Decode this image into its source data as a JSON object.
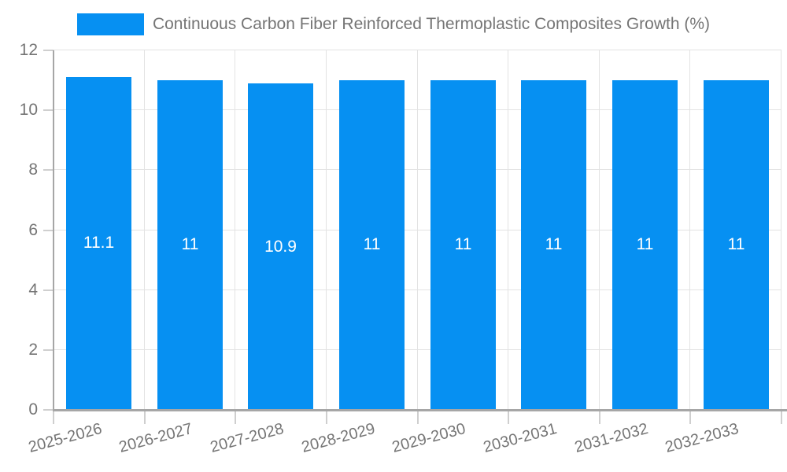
{
  "chart_data": {
    "type": "bar",
    "title": "Continuous Carbon Fiber Reinforced Thermoplastic Composites Growth (%)",
    "legend_position": "top",
    "categories": [
      "2025-2026",
      "2026-2027",
      "2027-2028",
      "2028-2029",
      "2029-2030",
      "2030-2031",
      "2031-2032",
      "2032-2033"
    ],
    "values": [
      11.1,
      11,
      10.9,
      11,
      11,
      11,
      11,
      11
    ],
    "value_labels": [
      "11.1",
      "11",
      "10.9",
      "11",
      "11",
      "11",
      "11",
      "11"
    ],
    "xlabel": "",
    "ylabel": "",
    "ylim": [
      0,
      12
    ],
    "yticks": [
      0,
      2,
      4,
      6,
      8,
      10,
      12
    ],
    "grid": "on",
    "x_label_rotation_deg": -15
  },
  "colors": {
    "bar": "#0690f2",
    "grid": "#e3e3e3",
    "axis_line": "#a6a6a6",
    "tick_mark": "#cfcfcf",
    "tick_label": "#757575",
    "value_label": "#ffffff",
    "legend_text": "#757575",
    "background": "#ffffff"
  }
}
